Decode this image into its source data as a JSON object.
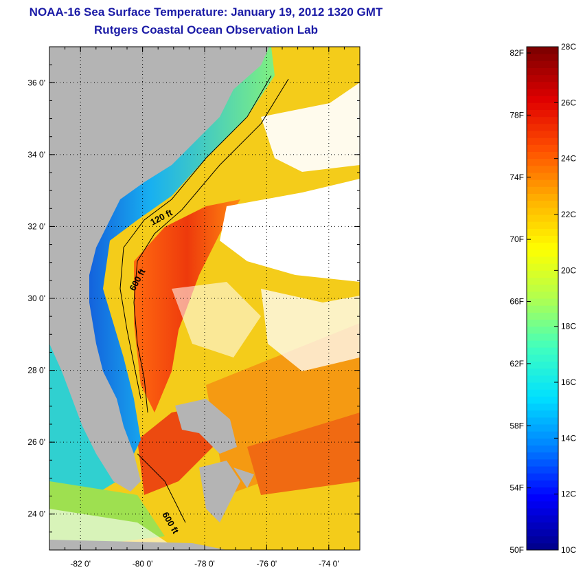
{
  "title": {
    "line1": "NOAA-16 Sea Surface Temperature:  January 19, 2012 1320 GMT",
    "line2": "Rutgers Coastal Ocean Observation Lab"
  },
  "map": {
    "lon_range": [
      -83,
      -73
    ],
    "lat_range": [
      23,
      37
    ],
    "x_ticks": [
      "-82 0'",
      "-80 0'",
      "-78 0'",
      "-76 0'",
      "-74 0'"
    ],
    "x_tick_values": [
      -82,
      -80,
      -78,
      -76,
      -74
    ],
    "y_ticks": [
      "36 0'",
      "34 0'",
      "32 0'",
      "30 0'",
      "28 0'",
      "26 0'",
      "24 0'"
    ],
    "y_tick_values": [
      36,
      34,
      32,
      30,
      28,
      26,
      24
    ],
    "contour_labels": [
      "120 ft",
      "600 ft",
      "600 ft"
    ],
    "colors": {
      "land": "#b4b4b4",
      "cloud": "#ffffff",
      "gulf_stream": "#e83a10",
      "shelf_cold": "#1b4ad8",
      "shelf_mid": "#20c8e8",
      "offshore": "#f7d21a"
    }
  },
  "colorbar": {
    "fahrenheit_labels": [
      "82F",
      "78F",
      "74F",
      "70F",
      "66F",
      "62F",
      "58F",
      "54F",
      "50F"
    ],
    "fahrenheit_values": [
      82,
      78,
      74,
      70,
      66,
      62,
      58,
      54,
      50
    ],
    "celsius_labels": [
      "28C",
      "26C",
      "24C",
      "22C",
      "20C",
      "18C",
      "16C",
      "14C",
      "12C",
      "10C"
    ],
    "celsius_values": [
      28,
      26,
      24,
      22,
      20,
      18,
      16,
      14,
      12,
      10
    ],
    "range_c": [
      10,
      28
    ],
    "stops": [
      "#00008f",
      "#0000ff",
      "#0080ff",
      "#00e0ff",
      "#40ffbf",
      "#b0ff50",
      "#ffff00",
      "#ffb000",
      "#ff5000",
      "#e00000",
      "#800000"
    ]
  }
}
